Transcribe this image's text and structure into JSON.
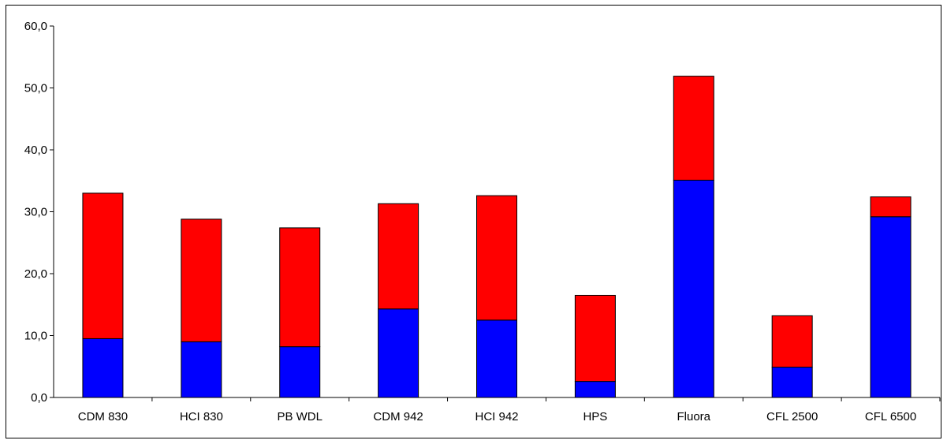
{
  "chart_data": {
    "type": "bar",
    "stacked": true,
    "title": "",
    "xlabel": "",
    "ylabel": "",
    "ylim": [
      0,
      60
    ],
    "yticks": [
      "0,0",
      "10,0",
      "20,0",
      "30,0",
      "40,0",
      "50,0",
      "60,0"
    ],
    "grid": false,
    "legend": "none",
    "categories": [
      "CDM 830",
      "HCI 830",
      "PB WDL",
      "CDM 942",
      "HCI 942",
      "HPS",
      "Fluora",
      "CFL 2500",
      "CFL 6500"
    ],
    "series": [
      {
        "color": "#0000ff",
        "values": [
          9.5,
          9.0,
          8.2,
          14.3,
          12.5,
          2.6,
          35.1,
          4.9,
          29.2
        ]
      },
      {
        "color": "#ff0000",
        "values": [
          23.5,
          19.8,
          19.2,
          17.0,
          20.1,
          13.9,
          16.8,
          8.3,
          3.2
        ]
      }
    ]
  }
}
